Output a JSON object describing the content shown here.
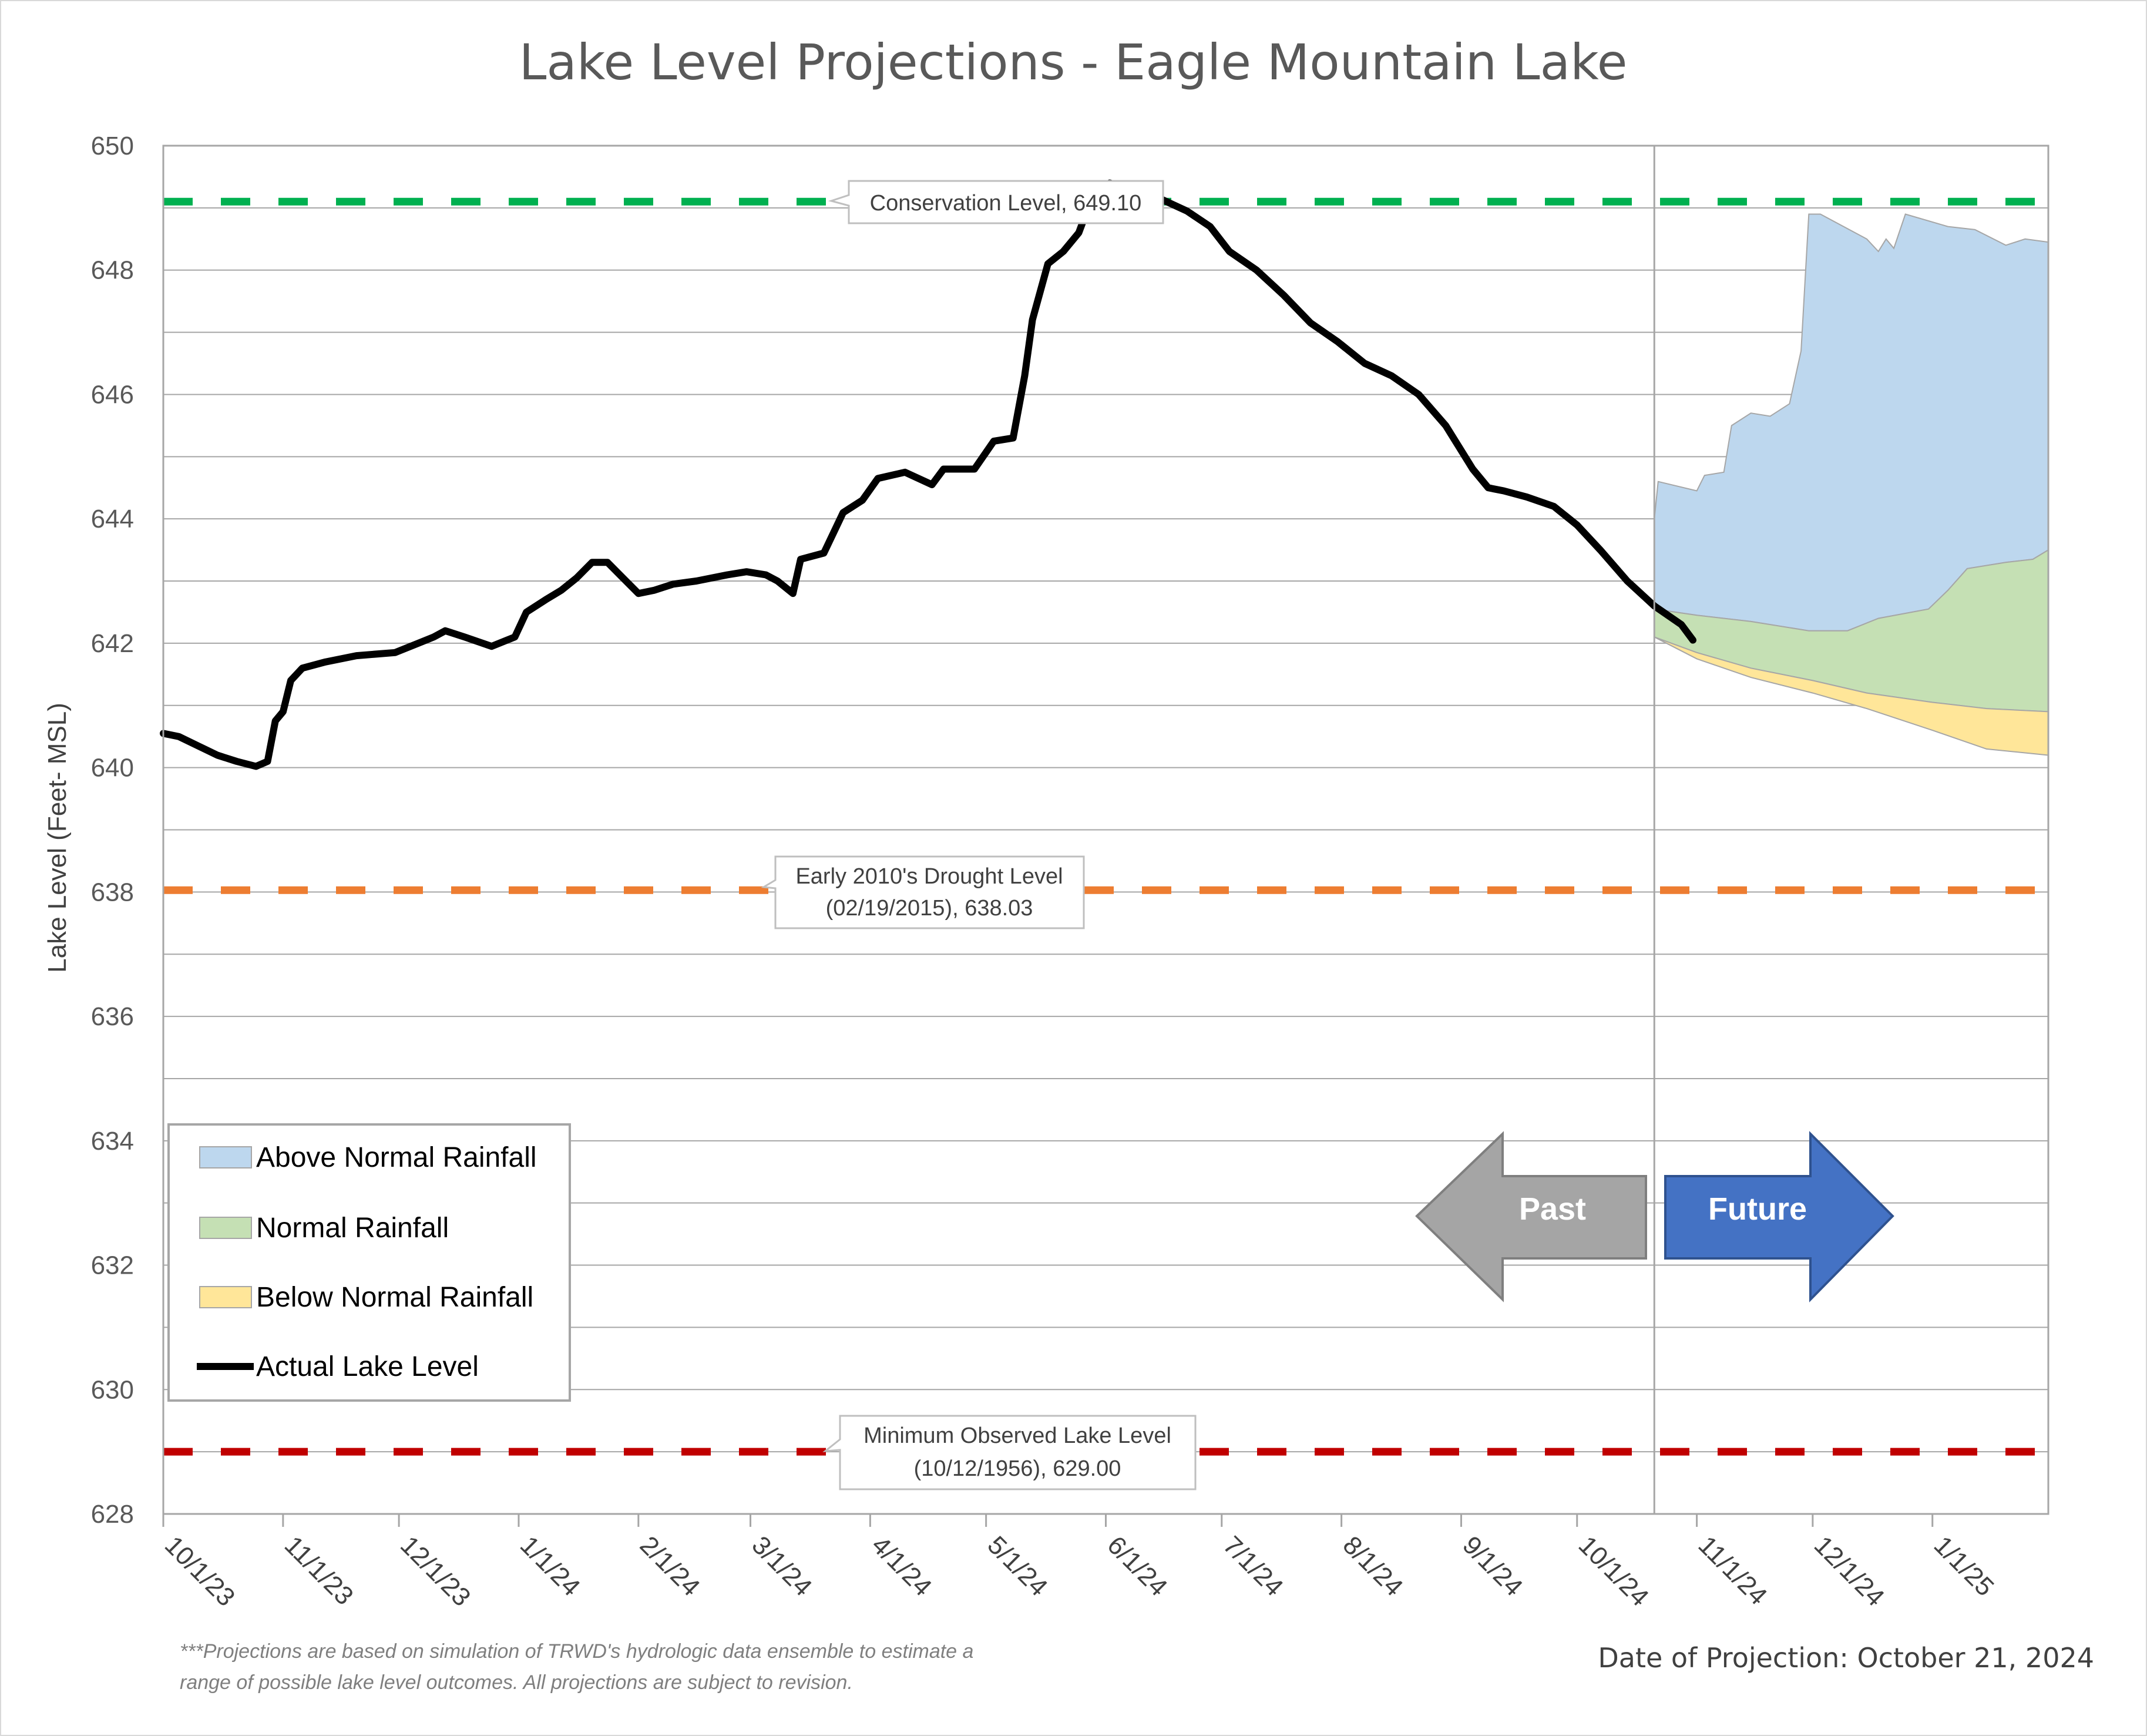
{
  "chart_data": {
    "type": "line",
    "title": "Lake Level Projections - Eagle Mountain Lake",
    "ylabel": "Lake Level (Feet- MSL)",
    "xlabel": "",
    "ylim": [
      628,
      650
    ],
    "y_ticks": [
      "628",
      "630",
      "632",
      "634",
      "636",
      "638",
      "640",
      "642",
      "644",
      "646",
      "648",
      "650"
    ],
    "x_ticks": [
      "10/1/23",
      "11/1/23",
      "12/1/23",
      "1/1/24",
      "2/1/24",
      "3/1/24",
      "4/1/24",
      "5/1/24",
      "6/1/24",
      "7/1/24",
      "8/1/24",
      "9/1/24",
      "10/1/24",
      "11/1/24",
      "12/1/24",
      "1/1/25"
    ],
    "x_range": [
      "10/1/23",
      "1/31/25"
    ],
    "grid": "horizontal, every 1 ft",
    "projection_date": "10/21/24",
    "reference_lines": [
      {
        "label": "Conservation Level, 649.10",
        "value": 649.1,
        "color": "#00b050"
      },
      {
        "label": "Early 2010's Drought Level (02/19/2015), 638.03",
        "line1": "Early 2010's Drought Level",
        "line2": "(02/19/2015), 638.03",
        "value": 638.03,
        "color": "#ed7d31"
      },
      {
        "label": "Minimum Observed Lake Level (10/12/1956), 629.00",
        "line1": "Minimum Observed Lake Level",
        "line2": "(10/12/1956), 629.00",
        "value": 629.0,
        "color": "#c00000"
      }
    ],
    "series": [
      {
        "name": "Actual Lake Level",
        "color": "#000000",
        "points": [
          [
            "10/1/23",
            640.55
          ],
          [
            "10/5/23",
            640.5
          ],
          [
            "10/10/23",
            640.35
          ],
          [
            "10/15/23",
            640.2
          ],
          [
            "10/20/23",
            640.1
          ],
          [
            "10/25/23",
            640.02
          ],
          [
            "10/28/23",
            640.1
          ],
          [
            "10/30/23",
            640.75
          ],
          [
            "11/1/23",
            640.9
          ],
          [
            "11/3/23",
            641.4
          ],
          [
            "11/6/23",
            641.6
          ],
          [
            "11/12/23",
            641.7
          ],
          [
            "11/20/23",
            641.8
          ],
          [
            "11/30/23",
            641.85
          ],
          [
            "12/6/23",
            642.0
          ],
          [
            "12/10/23",
            642.1
          ],
          [
            "12/13/23",
            642.2
          ],
          [
            "12/18/23",
            642.1
          ],
          [
            "12/25/23",
            641.95
          ],
          [
            "12/29/23",
            642.05
          ],
          [
            "12/31/23",
            642.1
          ],
          [
            "1/3/24",
            642.5
          ],
          [
            "1/8/24",
            642.7
          ],
          [
            "1/12/24",
            642.85
          ],
          [
            "1/16/24",
            643.05
          ],
          [
            "1/20/24",
            643.3
          ],
          [
            "1/24/24",
            643.3
          ],
          [
            "1/28/24",
            643.05
          ],
          [
            "2/1/24",
            642.8
          ],
          [
            "2/5/24",
            642.85
          ],
          [
            "2/10/24",
            642.95
          ],
          [
            "2/16/24",
            643.0
          ],
          [
            "2/20/24",
            643.05
          ],
          [
            "2/24/24",
            643.1
          ],
          [
            "2/29/24",
            643.15
          ],
          [
            "3/5/24",
            643.1
          ],
          [
            "3/8/24",
            643.0
          ],
          [
            "3/12/24",
            642.8
          ],
          [
            "3/14/24",
            643.35
          ],
          [
            "3/20/24",
            643.45
          ],
          [
            "3/25/24",
            644.1
          ],
          [
            "3/30/24",
            644.3
          ],
          [
            "4/3/24",
            644.65
          ],
          [
            "4/10/24",
            644.75
          ],
          [
            "4/17/24",
            644.55
          ],
          [
            "4/20/24",
            644.8
          ],
          [
            "4/28/24",
            644.8
          ],
          [
            "5/3/24",
            645.25
          ],
          [
            "5/8/24",
            645.3
          ],
          [
            "5/11/24",
            646.3
          ],
          [
            "5/13/24",
            647.2
          ],
          [
            "5/17/24",
            648.1
          ],
          [
            "5/21/24",
            648.3
          ],
          [
            "5/25/24",
            648.6
          ],
          [
            "5/28/24",
            649.1
          ],
          [
            "5/31/24",
            649.3
          ],
          [
            "6/2/24",
            649.4
          ],
          [
            "6/8/24",
            649.3
          ],
          [
            "6/15/24",
            649.15
          ],
          [
            "6/22/24",
            648.95
          ],
          [
            "6/28/24",
            648.7
          ],
          [
            "7/3/24",
            648.3
          ],
          [
            "7/10/24",
            648.0
          ],
          [
            "7/17/24",
            647.6
          ],
          [
            "7/24/24",
            647.15
          ],
          [
            "7/31/24",
            646.85
          ],
          [
            "8/7/24",
            646.5
          ],
          [
            "8/14/24",
            646.3
          ],
          [
            "8/21/24",
            646.0
          ],
          [
            "8/28/24",
            645.5
          ],
          [
            "9/4/24",
            644.8
          ],
          [
            "9/8/24",
            644.5
          ],
          [
            "9/12/24",
            644.45
          ],
          [
            "9/18/24",
            644.35
          ],
          [
            "9/25/24",
            644.2
          ],
          [
            "10/1/24",
            643.9
          ],
          [
            "10/7/24",
            643.5
          ],
          [
            "10/14/24",
            643.0
          ],
          [
            "10/21/24",
            642.6
          ],
          [
            "10/28/24",
            642.3
          ],
          [
            "10/31/24",
            642.05
          ]
        ]
      },
      {
        "name": "Above Normal Rainfall",
        "color": "#bdd7ee",
        "upper": [
          [
            "10/21/24",
            644.0
          ],
          [
            "10/22/24",
            644.6
          ],
          [
            "11/1/24",
            644.45
          ],
          [
            "11/3/24",
            644.7
          ],
          [
            "11/8/24",
            644.75
          ],
          [
            "11/10/24",
            645.5
          ],
          [
            "11/15/24",
            645.7
          ],
          [
            "11/20/24",
            645.65
          ],
          [
            "11/25/24",
            645.85
          ],
          [
            "11/28/24",
            646.7
          ],
          [
            "11/30/24",
            648.9
          ],
          [
            "12/3/24",
            648.9
          ],
          [
            "12/15/24",
            648.5
          ],
          [
            "12/18/24",
            648.3
          ],
          [
            "12/20/24",
            648.5
          ],
          [
            "12/22/24",
            648.35
          ],
          [
            "12/25/24",
            648.9
          ],
          [
            "1/5/25",
            648.7
          ],
          [
            "1/12/25",
            648.65
          ],
          [
            "1/20/25",
            648.4
          ],
          [
            "1/25/25",
            648.5
          ],
          [
            "1/31/25",
            648.45
          ]
        ]
      },
      {
        "name": "Normal Rainfall",
        "color": "#c5e0b4",
        "upper": [
          [
            "10/21/24",
            642.55
          ],
          [
            "11/1/24",
            642.45
          ],
          [
            "11/15/24",
            642.35
          ],
          [
            "11/30/24",
            642.2
          ],
          [
            "12/10/24",
            642.2
          ],
          [
            "12/18/24",
            642.4
          ],
          [
            "12/31/24",
            642.55
          ],
          [
            "1/5/25",
            642.85
          ],
          [
            "1/10/25",
            643.2
          ],
          [
            "1/20/25",
            643.3
          ],
          [
            "1/27/25",
            643.35
          ],
          [
            "1/31/25",
            643.5
          ]
        ]
      },
      {
        "name": "Below Normal Rainfall",
        "color": "#ffe699",
        "upper": [
          [
            "10/21/24",
            642.1
          ],
          [
            "11/1/24",
            641.85
          ],
          [
            "11/15/24",
            641.6
          ],
          [
            "12/1/24",
            641.4
          ],
          [
            "12/15/24",
            641.2
          ],
          [
            "1/1/25",
            641.05
          ],
          [
            "1/15/25",
            640.95
          ],
          [
            "1/31/25",
            640.9
          ]
        ],
        "lower": [
          [
            "10/21/24",
            642.1
          ],
          [
            "11/1/24",
            641.75
          ],
          [
            "11/15/24",
            641.45
          ],
          [
            "12/1/24",
            641.2
          ],
          [
            "12/15/24",
            640.95
          ],
          [
            "1/1/25",
            640.6
          ],
          [
            "1/15/25",
            640.3
          ],
          [
            "1/31/25",
            640.2
          ]
        ]
      }
    ],
    "legend": {
      "placement": "bottom-left",
      "entries": [
        "Above Normal Rainfall",
        "Normal Rainfall",
        "Below Normal Rainfall",
        "Actual Lake Level"
      ]
    },
    "annotations": {
      "past_label": "Past",
      "future_label": "Future",
      "past_color": "#a5a5a5",
      "future_color": "#4472c4"
    }
  },
  "footnote": {
    "line1": "***Projections are based on simulation of TRWD's hydrologic data ensemble to estimate a",
    "line2": "range of possible lake level outcomes.  All projections are subject to revision."
  },
  "projection_date_label": "Date of Projection: October 21, 2024"
}
